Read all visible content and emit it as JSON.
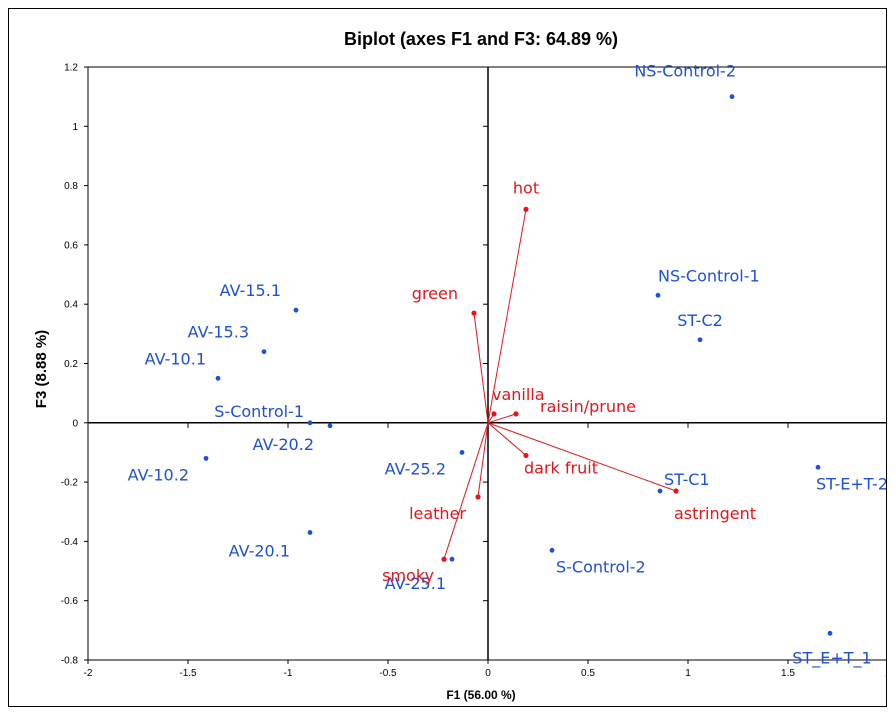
{
  "chart_data": {
    "type": "scatter",
    "title": "Biplot (axes F1 and F3: 64.89 %)",
    "xlabel": "F1 (56.00 %)",
    "ylabel": "F3 (8.88 %)",
    "xlim": [
      -2,
      2
    ],
    "ylim": [
      -0.8,
      1.2
    ],
    "xticks": [
      -2,
      -1.5,
      -1,
      -0.5,
      0,
      0.5,
      1,
      1.5,
      2
    ],
    "xtick_labels": [
      "-2",
      "-1.5",
      "-1",
      "-0.5",
      "0",
      "0.5",
      "1",
      "1.5",
      "2"
    ],
    "yticks": [
      -0.8,
      -0.6,
      -0.4,
      -0.2,
      0,
      0.2,
      0.4,
      0.6,
      0.8,
      1,
      1.2
    ],
    "ytick_labels": [
      "-0.8",
      "-0.6",
      "-0.4",
      "-0.2",
      "0",
      "0.2",
      "0.4",
      "0.6",
      "0.8",
      "1",
      "1.2"
    ],
    "grid": false,
    "colors": {
      "observations": "#1f4fd6",
      "variables": "#e8141c",
      "axes": "#000000"
    },
    "series": [
      {
        "kind": "observations",
        "points": [
          {
            "label": "NS-Control-2",
            "x": 1.22,
            "y": 1.1,
            "anchor": "end",
            "dx": 4,
            "dy": -20
          },
          {
            "label": "NS-Control-1",
            "x": 0.85,
            "y": 0.43,
            "anchor": "start",
            "dx": 0,
            "dy": -14
          },
          {
            "label": "ST-C2",
            "x": 1.06,
            "y": 0.28,
            "anchor": "middle",
            "dx": 0,
            "dy": -14
          },
          {
            "label": "AV-15.1",
            "x": -0.96,
            "y": 0.38,
            "anchor": "end",
            "dx": -15,
            "dy": -14
          },
          {
            "label": "AV-15.3",
            "x": -1.12,
            "y": 0.24,
            "anchor": "end",
            "dx": -15,
            "dy": -14
          },
          {
            "label": "AV-10.1",
            "x": -1.35,
            "y": 0.15,
            "anchor": "end",
            "dx": -12,
            "dy": -14
          },
          {
            "label": "S-Control-1",
            "x": -0.89,
            "y": 0.0,
            "anchor": "end",
            "dx": -6,
            "dy": -6
          },
          {
            "label": "AV-20.2",
            "x": -0.79,
            "y": -0.01,
            "anchor": "end",
            "dx": -16,
            "dy": 24
          },
          {
            "label": "AV-10.2",
            "x": -1.41,
            "y": -0.12,
            "anchor": "end",
            "dx": -17,
            "dy": 22
          },
          {
            "label": "AV-25.2",
            "x": -0.13,
            "y": -0.1,
            "anchor": "end",
            "dx": -16,
            "dy": 22
          },
          {
            "label": "AV-20.1",
            "x": -0.89,
            "y": -0.37,
            "anchor": "end",
            "dx": -20,
            "dy": 24
          },
          {
            "label": "AV-25.1",
            "x": -0.18,
            "y": -0.46,
            "anchor": "end",
            "dx": -6,
            "dy": 30
          },
          {
            "label": "ST-C1",
            "x": 0.86,
            "y": -0.23,
            "anchor": "start",
            "dx": 4,
            "dy": -6
          },
          {
            "label": "S-Control-2",
            "x": 0.32,
            "y": -0.43,
            "anchor": "start",
            "dx": 4,
            "dy": 22
          },
          {
            "label": "ST-E+T-2",
            "x": 1.65,
            "y": -0.15,
            "anchor": "start",
            "dx": -2,
            "dy": 22
          },
          {
            "label": "ST_E+T_1",
            "x": 1.71,
            "y": -0.71,
            "anchor": "middle",
            "dx": 2,
            "dy": 30
          }
        ]
      },
      {
        "kind": "variables",
        "points": [
          {
            "label": "hot",
            "x": 0.19,
            "y": 0.72,
            "anchor": "middle",
            "dx": 0,
            "dy": -16
          },
          {
            "label": "green",
            "x": -0.07,
            "y": 0.37,
            "anchor": "end",
            "dx": -16,
            "dy": -14
          },
          {
            "label": "vanilla",
            "x": 0.03,
            "y": 0.03,
            "anchor": "start",
            "dx": -2,
            "dy": -14
          },
          {
            "label": "raisin/prune",
            "x": 0.14,
            "y": 0.03,
            "anchor": "start",
            "dx": 24,
            "dy": -2
          },
          {
            "label": "dark fruit",
            "x": 0.19,
            "y": -0.11,
            "anchor": "start",
            "dx": -2,
            "dy": 18
          },
          {
            "label": "astringent",
            "x": 0.94,
            "y": -0.23,
            "anchor": "start",
            "dx": -2,
            "dy": 28
          },
          {
            "label": "leather",
            "x": -0.05,
            "y": -0.25,
            "anchor": "end",
            "dx": -12,
            "dy": 22
          },
          {
            "label": "smoky",
            "x": -0.22,
            "y": -0.46,
            "anchor": "end",
            "dx": -10,
            "dy": 22
          }
        ]
      }
    ]
  }
}
